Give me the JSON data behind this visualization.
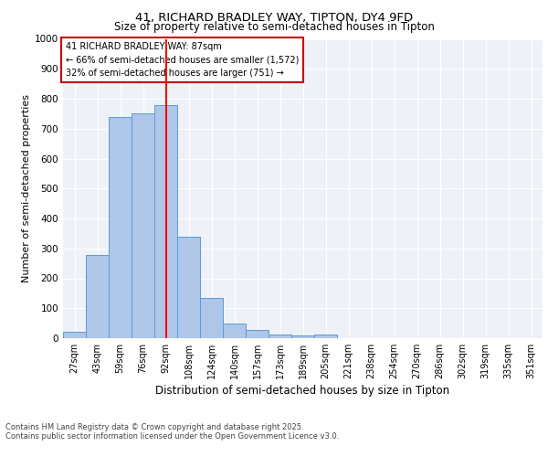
{
  "title1": "41, RICHARD BRADLEY WAY, TIPTON, DY4 9FD",
  "title2": "Size of property relative to semi-detached houses in Tipton",
  "xlabel": "Distribution of semi-detached houses by size in Tipton",
  "ylabel": "Number of semi-detached properties",
  "categories": [
    "27sqm",
    "43sqm",
    "59sqm",
    "76sqm",
    "92sqm",
    "108sqm",
    "124sqm",
    "140sqm",
    "157sqm",
    "173sqm",
    "189sqm",
    "205sqm",
    "221sqm",
    "238sqm",
    "254sqm",
    "270sqm",
    "286sqm",
    "302sqm",
    "319sqm",
    "335sqm",
    "351sqm"
  ],
  "values": [
    22,
    278,
    740,
    750,
    780,
    340,
    135,
    48,
    27,
    13,
    8,
    12,
    0,
    0,
    0,
    0,
    0,
    0,
    0,
    0,
    0
  ],
  "bar_color": "#aec6e8",
  "bar_edgecolor": "#5b9bd5",
  "redline_x": 4.0,
  "annotation_lines": [
    "41 RICHARD BRADLEY WAY: 87sqm",
    "← 66% of semi-detached houses are smaller (1,572)",
    "32% of semi-detached houses are larger (751) →"
  ],
  "annotation_box_color": "#ffffff",
  "annotation_box_edgecolor": "#cc0000",
  "ylim": [
    0,
    1000
  ],
  "background_color": "#eef2f8",
  "footer1": "Contains HM Land Registry data © Crown copyright and database right 2025.",
  "footer2": "Contains public sector information licensed under the Open Government Licence v3.0."
}
